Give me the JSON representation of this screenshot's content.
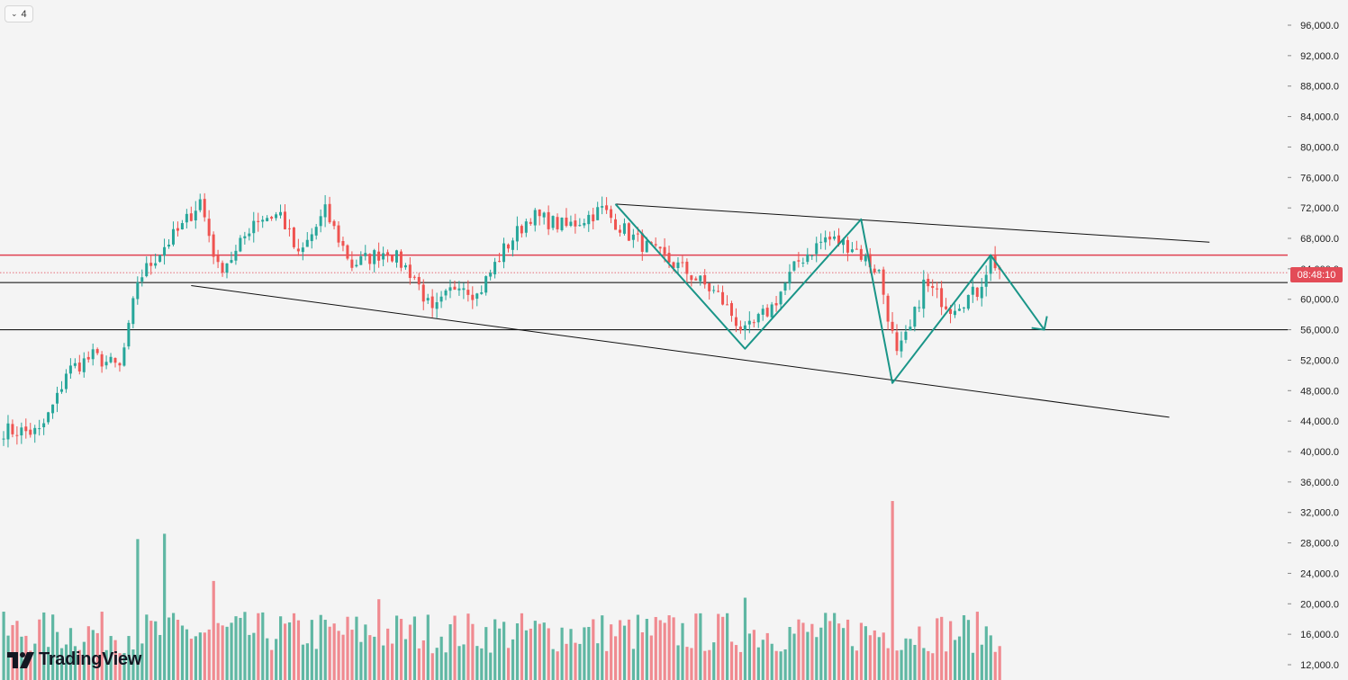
{
  "toolbar": {
    "interval_label": "4"
  },
  "branding": {
    "logo_text": "TradingView"
  },
  "countdown": "08:48:10",
  "colors": {
    "up": "#26a69a",
    "down": "#ef5350",
    "vol_up": "#5fb7a3",
    "vol_down": "#f08a90",
    "resistance": "#e04150",
    "pattern": "#1a9588",
    "trendline": "#111111"
  },
  "chart_data": {
    "type": "candlestick",
    "y_axis": {
      "ticks": [
        96000,
        92000,
        88000,
        84000,
        80000,
        76000,
        72000,
        68000,
        64000,
        60000,
        56000,
        52000,
        48000,
        44000,
        40000,
        36000,
        32000,
        28000,
        24000,
        20000,
        16000,
        12000
      ],
      "tick_labels": [
        "96,000.0",
        "92,000.0",
        "88,000.0",
        "84,000.0",
        "80,000.0",
        "76,000.0",
        "72,000.0",
        "68,000.0",
        "64,000.0",
        "60,000.0",
        "56,000.0",
        "52,000.0",
        "48,000.0",
        "44,000.0",
        "40,000.0",
        "36,000.0",
        "32,000.0",
        "28,000.0",
        "24,000.0",
        "20,000.0",
        "16,000.0",
        "12,000.0"
      ]
    },
    "price_range": [
      12000,
      96000
    ],
    "candle_count": 224,
    "anchors": [
      [
        0,
        42800
      ],
      [
        8,
        42500
      ],
      [
        12,
        47000
      ],
      [
        14,
        50500
      ],
      [
        20,
        52500
      ],
      [
        26,
        51000
      ],
      [
        28,
        56000
      ],
      [
        30,
        62500
      ],
      [
        36,
        67000
      ],
      [
        40,
        69500
      ],
      [
        44,
        73000
      ],
      [
        48,
        64000
      ],
      [
        52,
        66000
      ],
      [
        56,
        70500
      ],
      [
        62,
        71200
      ],
      [
        66,
        65500
      ],
      [
        72,
        71500
      ],
      [
        78,
        64500
      ],
      [
        86,
        66500
      ],
      [
        92,
        63000
      ],
      [
        96,
        58000
      ],
      [
        102,
        62500
      ],
      [
        106,
        60500
      ],
      [
        112,
        66500
      ],
      [
        118,
        71000
      ],
      [
        126,
        69500
      ],
      [
        134,
        71800
      ],
      [
        140,
        68500
      ],
      [
        146,
        66000
      ],
      [
        152,
        64000
      ],
      [
        160,
        60500
      ],
      [
        166,
        55500
      ],
      [
        172,
        59000
      ],
      [
        178,
        65000
      ],
      [
        184,
        68000
      ],
      [
        190,
        67000
      ],
      [
        196,
        63500
      ],
      [
        200,
        52500
      ],
      [
        203,
        56000
      ],
      [
        206,
        62000
      ],
      [
        212,
        59000
      ],
      [
        218,
        61000
      ],
      [
        221,
        65300
      ],
      [
        223,
        64000
      ]
    ],
    "volume_spikes": [
      [
        30,
        28500
      ],
      [
        36,
        29200
      ],
      [
        199,
        33500
      ],
      [
        47,
        23000
      ],
      [
        84,
        20600
      ],
      [
        166,
        20800
      ]
    ],
    "horizontal_levels": [
      {
        "price": 65800,
        "style": "resistance"
      },
      {
        "price": 62200,
        "style": "support"
      },
      {
        "price": 56000,
        "style": "support"
      }
    ],
    "current_price": 63500,
    "trendlines": [
      {
        "from": [
          137,
          72500
        ],
        "to": [
          270,
          67500
        ]
      },
      {
        "from": [
          42,
          61800
        ],
        "to": [
          261,
          44500
        ]
      }
    ],
    "pattern_path": [
      [
        137,
        72500
      ],
      [
        166,
        53500
      ],
      [
        192,
        70500
      ],
      [
        199,
        49000
      ],
      [
        221,
        65800
      ],
      [
        233,
        56000
      ]
    ],
    "pattern_arrow_tip": [
      233,
      56000
    ]
  }
}
